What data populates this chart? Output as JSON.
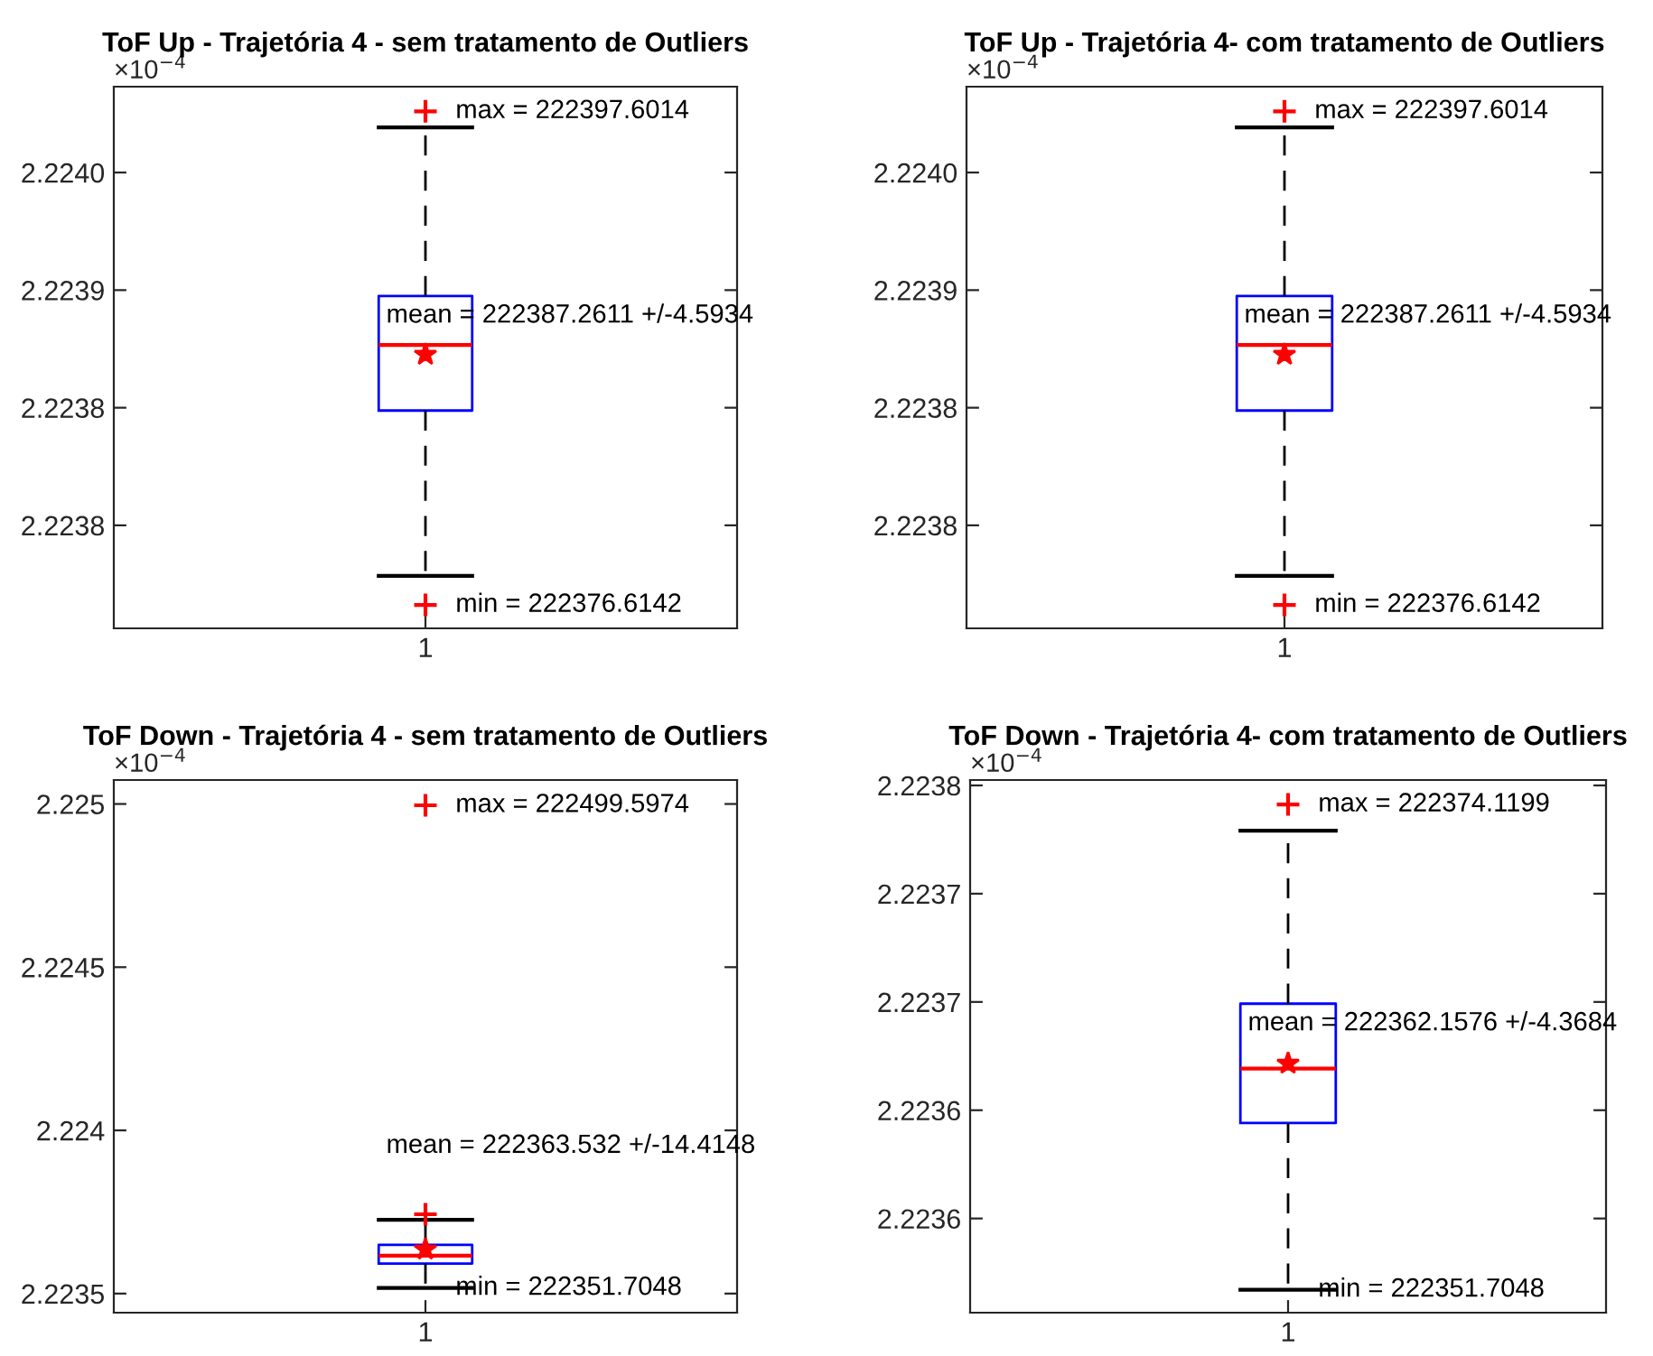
{
  "chart_data": [
    {
      "type": "box",
      "title": "ToF Up - Trajetória 4 - sem tratamento de Outliers",
      "categories": [
        "1"
      ],
      "boxes": [
        {
          "low": 2.2237785,
          "q1": 2.2238488,
          "median": 2.2238767,
          "q3": 2.2238975,
          "high": 2.2239692,
          "mean": 2.22387261,
          "outliers": [
            2.22397601,
            2.22376614
          ]
        }
      ],
      "ylim": [
        2.2237562,
        2.2239865
      ],
      "yticks": [
        {
          "value": 2.2238,
          "label": "2.2238"
        },
        {
          "value": 2.22385,
          "label": "2.2238"
        },
        {
          "value": 2.2239,
          "label": "2.2239"
        },
        {
          "value": 2.22395,
          "label": "2.2240"
        }
      ],
      "annotations": [
        "×10$^{−4}$",
        "max = 222397.6014",
        "mean = 222387.2611 +/-4.5934",
        "min = 222376.6142"
      ]
    },
    {
      "type": "box",
      "title": "ToF Up - Trajetória 4- com tratamento de Outliers",
      "categories": [
        "1"
      ],
      "boxes": [
        {
          "low": 2.2237785,
          "q1": 2.2238488,
          "median": 2.2238767,
          "q3": 2.2238975,
          "high": 2.2239692,
          "mean": 2.22387261,
          "outliers": [
            2.22397601,
            2.22376614
          ]
        }
      ],
      "ylim": [
        2.2237562,
        2.2239865
      ],
      "yticks": [
        {
          "value": 2.2238,
          "label": "2.2238"
        },
        {
          "value": 2.22385,
          "label": "2.2238"
        },
        {
          "value": 2.2239,
          "label": "2.2239"
        },
        {
          "value": 2.22395,
          "label": "2.2240"
        }
      ],
      "annotations": [
        "×10$^{−4}$",
        "max = 222397.6014",
        "mean = 222387.2611 +/-4.5934",
        "min = 222376.6142"
      ]
    },
    {
      "type": "box",
      "title": "ToF Down - Trajetória 4 - sem tratamento de Outliers",
      "categories": [
        "1"
      ],
      "boxes": [
        {
          "low": 2.22351705,
          "q1": 2.223592,
          "median": 2.223616,
          "q3": 2.223649,
          "high": 2.223726,
          "mean": 2.22363532,
          "outliers": [
            2.223743,
            2.22499597
          ]
        }
      ],
      "ylim": [
        2.2234415,
        2.2250734
      ],
      "yticks": [
        2.2235,
        2.224,
        2.2245,
        2.225
      ],
      "annotations": [
        "×10$^{−4}$",
        "max = 222499.5974",
        "mean = 222363.532 +/-14.4148",
        "min = 222351.7048"
      ]
    },
    {
      "type": "box",
      "title": "ToF Down - Trajetória 4- com tratamento de Outliers",
      "categories": [
        "1"
      ],
      "boxes": [
        {
          "low": 2.22351705,
          "q1": 2.2235941,
          "median": 2.2236192,
          "q3": 2.2236492,
          "high": 2.2237291,
          "mean": 2.22362158,
          "outliers": [
            2.2237412
          ]
        }
      ],
      "ylim": [
        2.2235065,
        2.2237525
      ],
      "yticks": [
        {
          "value": 2.22355,
          "label": "2.2236"
        },
        {
          "value": 2.2236,
          "label": "2.2236"
        },
        {
          "value": 2.22365,
          "label": "2.2237"
        },
        {
          "value": 2.2237,
          "label": "2.2237"
        },
        {
          "value": 2.22375,
          "label": "2.2238"
        }
      ],
      "annotations": [
        "×10$^{−4}$",
        "max = 222374.1199",
        "mean = 222362.1576 +/-4.3684",
        "min = 222351.7048"
      ]
    }
  ]
}
